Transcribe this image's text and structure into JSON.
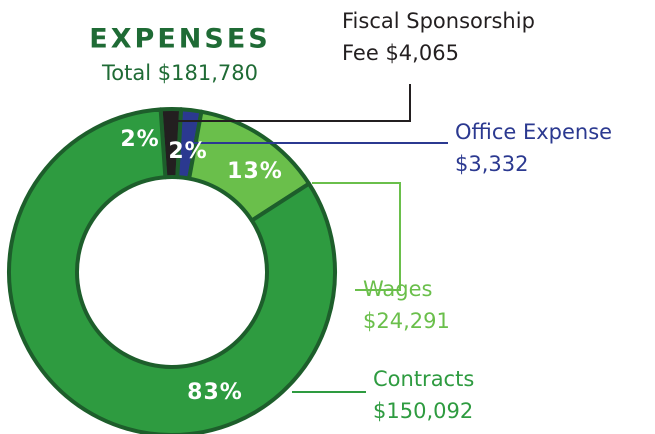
{
  "chart_data": {
    "type": "pie",
    "donut": true,
    "title": "EXPENSES",
    "subtitle": "Total $181,780",
    "labels": [
      [
        "Fiscal Sponsorship",
        "Fee $4,065"
      ],
      [
        "Office Expense",
        "$3,332"
      ],
      [
        "Wages",
        "$24,291"
      ],
      [
        "Contracts",
        "$150,092"
      ]
    ],
    "values": [
      2,
      2,
      13,
      83
    ],
    "value_labels": [
      "2%",
      "2%",
      "13%",
      "83%"
    ],
    "colors": [
      "#231f20",
      "#2b3990",
      "#6abf4b",
      "#2e9b40"
    ],
    "label_colors": [
      "#231f20",
      "#2b3990",
      "#6abf4b",
      "#2e9b40"
    ]
  }
}
